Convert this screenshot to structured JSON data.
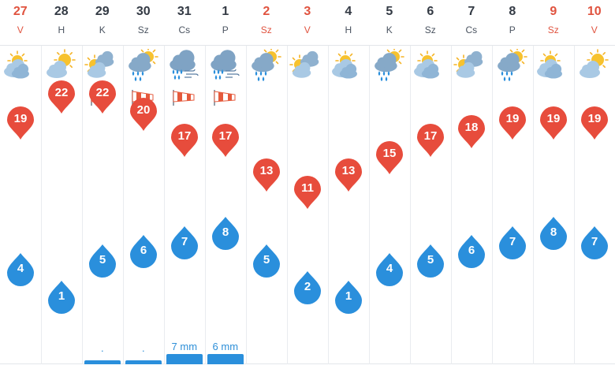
{
  "colors": {
    "weekday": "#333a44",
    "weekend": "#e0533f",
    "max_pin": "#e74c3c",
    "min_pin": "#2a8fdc",
    "precip": "#2a8fdc"
  },
  "days": [
    {
      "num": "27",
      "abbr": "V",
      "weekend": true,
      "icon": "partly-cloudy-icon",
      "wind": false,
      "max": "19",
      "min": "4",
      "precip_label": "",
      "precip_level": 0
    },
    {
      "num": "28",
      "abbr": "H",
      "weekend": false,
      "icon": "sun-behind-cloud-icon",
      "wind": false,
      "max": "22",
      "min": "1",
      "precip_label": "",
      "precip_level": 0
    },
    {
      "num": "29",
      "abbr": "K",
      "weekend": false,
      "icon": "sun-clouds-icon",
      "wind": true,
      "max": "22",
      "min": "5",
      "precip_label": ".",
      "precip_level": 0.2
    },
    {
      "num": "30",
      "abbr": "Sz",
      "weekend": false,
      "icon": "sun-cloud-rain-icon",
      "wind": true,
      "max": "20",
      "min": "6",
      "precip_label": ".",
      "precip_level": 0.2
    },
    {
      "num": "31",
      "abbr": "Cs",
      "weekend": false,
      "icon": "cloud-heavy-rain-icon",
      "wind": true,
      "max": "17",
      "min": "7",
      "precip_label": "7 mm",
      "precip_level": 1
    },
    {
      "num": "1",
      "abbr": "P",
      "weekend": false,
      "icon": "cloud-rain-wind-icon",
      "wind": true,
      "max": "17",
      "min": "8",
      "precip_label": "6 mm",
      "precip_level": 1
    },
    {
      "num": "2",
      "abbr": "Sz",
      "weekend": true,
      "icon": "sun-cloud-rain-icon",
      "wind": false,
      "max": "13",
      "min": "5",
      "precip_label": "",
      "precip_level": 0
    },
    {
      "num": "3",
      "abbr": "V",
      "weekend": true,
      "icon": "sun-clouds-icon",
      "wind": false,
      "max": "11",
      "min": "2",
      "precip_label": "",
      "precip_level": 0
    },
    {
      "num": "4",
      "abbr": "H",
      "weekend": false,
      "icon": "partly-cloudy-icon",
      "wind": false,
      "max": "13",
      "min": "1",
      "precip_label": "",
      "precip_level": 0
    },
    {
      "num": "5",
      "abbr": "K",
      "weekend": false,
      "icon": "sun-cloud-rain-icon",
      "wind": false,
      "max": "15",
      "min": "4",
      "precip_label": "",
      "precip_level": 0
    },
    {
      "num": "6",
      "abbr": "Sz",
      "weekend": false,
      "icon": "partly-cloudy-icon",
      "wind": false,
      "max": "17",
      "min": "5",
      "precip_label": "",
      "precip_level": 0
    },
    {
      "num": "7",
      "abbr": "Cs",
      "weekend": false,
      "icon": "sun-clouds-icon",
      "wind": false,
      "max": "18",
      "min": "6",
      "precip_label": "",
      "precip_level": 0
    },
    {
      "num": "8",
      "abbr": "P",
      "weekend": false,
      "icon": "sun-cloud-rain-icon",
      "wind": false,
      "max": "19",
      "min": "7",
      "precip_label": "",
      "precip_level": 0
    },
    {
      "num": "9",
      "abbr": "Sz",
      "weekend": true,
      "icon": "partly-cloudy-icon",
      "wind": false,
      "max": "19",
      "min": "8",
      "precip_label": "",
      "precip_level": 0
    },
    {
      "num": "10",
      "abbr": "V",
      "weekend": true,
      "icon": "sun-behind-cloud-icon",
      "wind": false,
      "max": "19",
      "min": "7",
      "precip_label": "",
      "precip_level": 0
    }
  ]
}
